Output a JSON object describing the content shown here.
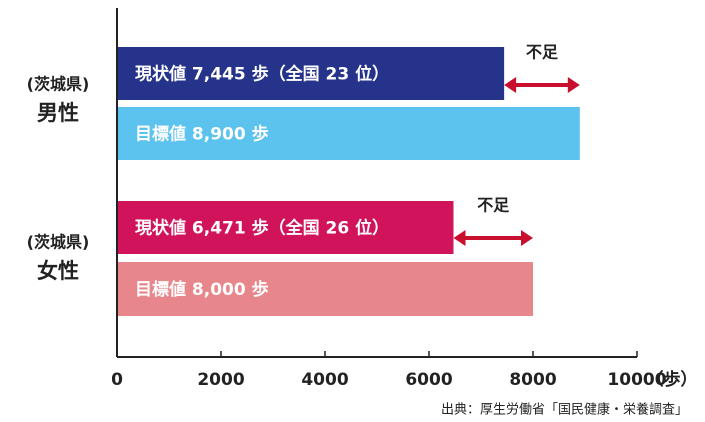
{
  "chart_data": {
    "type": "bar",
    "orientation": "horizontal",
    "groups": [
      [
        "(茨城県)",
        "男性"
      ],
      [
        "(茨城県)",
        "女性"
      ]
    ],
    "values": [
      7445,
      8900,
      6471,
      8000
    ],
    "value_labels": [
      "現状値 7,445 歩（全国 23 位）",
      "目標値 8,900 歩",
      "現状値 6,471 歩（全国 26 位）",
      "目標値 8,000 歩"
    ],
    "colors": [
      "#25338a",
      "#5cc3ee",
      "#d1135c",
      "#e8878b"
    ],
    "annotations": [
      "不足",
      "不足"
    ],
    "annotation_color": "#c8102e",
    "xlim": [
      0,
      10000
    ],
    "xticks": [
      0,
      2000,
      4000,
      6000,
      8000,
      10000
    ],
    "x_unit": "（歩）",
    "source": "出典：厚生労働省「国民健康・栄養調査」"
  }
}
